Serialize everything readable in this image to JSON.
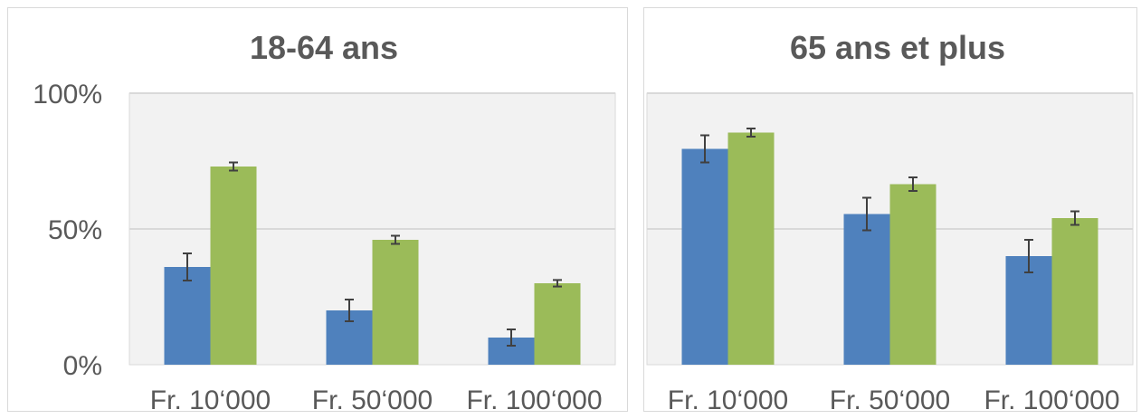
{
  "chart_data": [
    {
      "type": "bar",
      "title": "18-64 ans",
      "categories": [
        "Fr. 10‘000",
        "Fr. 50‘000",
        "Fr. 100‘000"
      ],
      "series": [
        {
          "values": [
            36,
            20,
            10
          ],
          "error": [
            5,
            4,
            3
          ],
          "color": "#4F81BD"
        },
        {
          "values": [
            73,
            46,
            30
          ],
          "error": [
            1.5,
            1.5,
            1.2
          ],
          "color": "#9BBB59"
        }
      ],
      "ylim": [
        0,
        100
      ],
      "yticks": [
        0,
        50,
        100
      ],
      "ytick_labels": [
        "0%",
        "50%",
        "100%"
      ],
      "grid": true,
      "legend": "none"
    },
    {
      "type": "bar",
      "title": "65 ans et plus",
      "categories": [
        "Fr. 10‘000",
        "Fr. 50‘000",
        "Fr. 100‘000"
      ],
      "series": [
        {
          "values": [
            79.5,
            55.5,
            40
          ],
          "error": [
            5,
            6,
            6
          ],
          "color": "#4F81BD"
        },
        {
          "values": [
            85.5,
            66.5,
            54
          ],
          "error": [
            1.5,
            2.5,
            2.5
          ],
          "color": "#9BBB59"
        }
      ],
      "ylim": [
        0,
        100
      ],
      "yticks": [
        0,
        50,
        100
      ],
      "ytick_labels": [
        "",
        "",
        ""
      ],
      "grid": true,
      "legend": "none"
    }
  ],
  "colors": {
    "plot_bg": "#F2F2F2",
    "gridline": "#D9D9D9",
    "text": "#595959",
    "error_bar": "#404040"
  }
}
